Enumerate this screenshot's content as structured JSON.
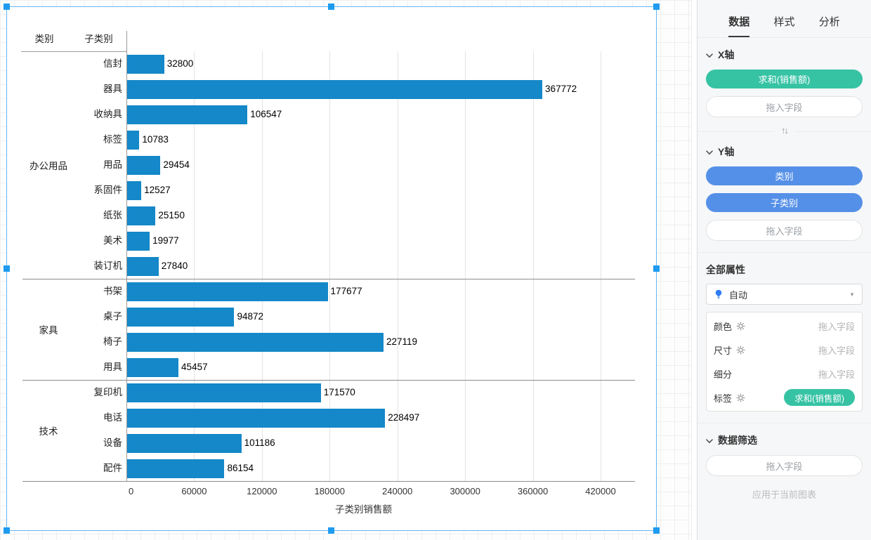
{
  "chart_data": {
    "type": "bar",
    "orientation": "horizontal",
    "xlabel": "子类别销售额",
    "col_headers": [
      "类别",
      "子类别"
    ],
    "x_ticks": [
      0,
      60000,
      120000,
      180000,
      240000,
      300000,
      360000,
      420000
    ],
    "xlim": [
      0,
      450000
    ],
    "bar_color": "#1488c8",
    "grid": true,
    "groups": [
      {
        "category": "办公用品",
        "items": [
          {
            "label": "信封",
            "value": 32800
          },
          {
            "label": "器具",
            "value": 367772
          },
          {
            "label": "收纳具",
            "value": 106547
          },
          {
            "label": "标签",
            "value": 10783
          },
          {
            "label": "用品",
            "value": 29454
          },
          {
            "label": "系固件",
            "value": 12527
          },
          {
            "label": "纸张",
            "value": 25150
          },
          {
            "label": "美术",
            "value": 19977
          },
          {
            "label": "装订机",
            "value": 27840
          }
        ]
      },
      {
        "category": "家具",
        "items": [
          {
            "label": "书架",
            "value": 177677
          },
          {
            "label": "桌子",
            "value": 94872
          },
          {
            "label": "椅子",
            "value": 227119
          },
          {
            "label": "用具",
            "value": 45457
          }
        ]
      },
      {
        "category": "技术",
        "items": [
          {
            "label": "复印机",
            "value": 171570
          },
          {
            "label": "电话",
            "value": 228497
          },
          {
            "label": "设备",
            "value": 101186
          },
          {
            "label": "配件",
            "value": 86154
          }
        ]
      }
    ]
  },
  "panel": {
    "tabs": [
      {
        "label": "数据",
        "active": true
      },
      {
        "label": "样式",
        "active": false
      },
      {
        "label": "分析",
        "active": false
      }
    ],
    "x_axis": {
      "title": "X轴",
      "pills": [
        {
          "label": "求和(销售额)",
          "color": "green"
        }
      ],
      "drop_label": "拖入字段"
    },
    "y_axis": {
      "title": "Y轴",
      "pills": [
        {
          "label": "类别",
          "color": "blue"
        },
        {
          "label": "子类别",
          "color": "blue"
        }
      ],
      "drop_label": "拖入字段"
    },
    "all_props": {
      "title": "全部属性",
      "mode": "自动",
      "rows": [
        {
          "name": "颜色",
          "gear": true,
          "value": "拖入字段",
          "value_type": "placeholder"
        },
        {
          "name": "尺寸",
          "gear": true,
          "value": "拖入字段",
          "value_type": "placeholder"
        },
        {
          "name": "细分",
          "gear": false,
          "value": "拖入字段",
          "value_type": "placeholder"
        },
        {
          "name": "标签",
          "gear": true,
          "value": "求和(销售额)",
          "value_type": "measure-pill"
        }
      ]
    },
    "data_filter": {
      "title": "数据筛选",
      "drop_label": "拖入字段",
      "note": "应用于当前图表"
    }
  },
  "icons": {
    "section_chevron": "chevron-down",
    "swap_axes": "↑↓",
    "auto_mode": "lightbulb",
    "settings": "gear",
    "select_caret": "▼"
  },
  "colors": {
    "bar": "#1488c8",
    "measure_pill": "#36c3a4",
    "dimension_pill": "#5590e8",
    "selection": "#1e9bf0"
  }
}
